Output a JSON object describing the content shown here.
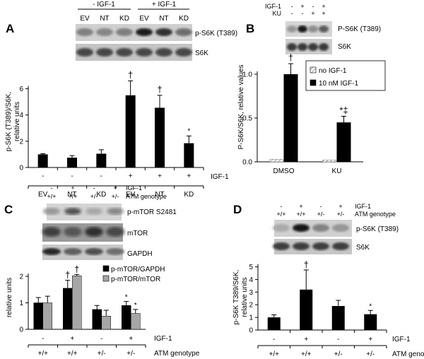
{
  "chart_data": [
    {
      "panel": "A",
      "type": "bar",
      "blot": {
        "group_headers": [
          "- IGF-1",
          "+ IGF-1"
        ],
        "lane_labels": [
          "EV",
          "NT",
          "KD",
          "EV",
          "NT",
          "KD"
        ],
        "rows": [
          "p-S6K (T389)",
          "S6K"
        ]
      },
      "categories": [
        "EV",
        "NT",
        "KD",
        "EV",
        "NT",
        "KD"
      ],
      "igf": [
        "-",
        "-",
        "-",
        "+",
        "+",
        "+"
      ],
      "values": [
        1.0,
        0.75,
        1.05,
        5.5,
        4.55,
        1.85
      ],
      "errors": [
        0.05,
        0.15,
        0.3,
        1.1,
        0.95,
        0.55
      ],
      "annotations": [
        "",
        "",
        "",
        "†",
        "†",
        "*"
      ],
      "ylabel_lines": [
        "p-S6K (T389)/S6K,",
        "relative units"
      ],
      "row_label": "IGF-1",
      "ylim": [
        0,
        7
      ],
      "yticks": [
        0,
        2,
        4,
        6
      ],
      "bar_color": "#000000"
    },
    {
      "panel": "B",
      "type": "bar",
      "blot": {
        "treatment_rows": [
          {
            "label": "IGF-1",
            "signs": [
              "-",
              "+",
              "-",
              "+"
            ]
          },
          {
            "label": "KU",
            "signs": [
              "-",
              "-",
              "+",
              "+"
            ]
          }
        ],
        "rows": [
          "P-S6K (T389)",
          "S6K"
        ]
      },
      "categories": [
        "DMSO",
        "KU"
      ],
      "series": [
        {
          "name": "no IGF-1",
          "values": [
            0.03,
            0.02
          ],
          "errors": [
            0.005,
            0.005
          ],
          "color": "#d9d9d9",
          "pattern": "hatched"
        },
        {
          "name": "10 nM IGF-1",
          "values": [
            1.0,
            0.45
          ],
          "errors": [
            0.12,
            0.07
          ],
          "color": "#000000"
        }
      ],
      "annotations": [
        "†",
        "*‡"
      ],
      "ylabel": "P-S6K/S6K, relative values",
      "ylim": [
        0,
        1.25
      ],
      "yticks": [
        0.0,
        0.5,
        1.0
      ],
      "legend": "top-right"
    },
    {
      "panel": "C",
      "type": "bar",
      "blot": {
        "treatment_rows": [
          {
            "label": "IGF-1",
            "signs": [
              "-",
              "+",
              "-",
              "+"
            ]
          },
          {
            "label": "ATM genotype",
            "signs": [
              "+/+",
              "+/+",
              "+/-",
              "+/-"
            ]
          }
        ],
        "rows": [
          "p-mTOR S2481",
          "mTOR",
          "GAPDH"
        ]
      },
      "igf": [
        "-",
        "+",
        "-",
        "+"
      ],
      "genotype": [
        "+/+",
        "+/+",
        "+/-",
        "+/-"
      ],
      "series": [
        {
          "name": "p-mTOR/GAPDH",
          "values": [
            1.0,
            1.55,
            0.75,
            0.9
          ],
          "errors": [
            0.2,
            0.3,
            0.15,
            0.15
          ],
          "color": "#000000"
        },
        {
          "name": "p-mTOR/mTOR",
          "values": [
            1.0,
            2.02,
            0.5,
            0.6
          ],
          "errors": [
            0.25,
            0.05,
            0.22,
            0.15
          ],
          "color": "#a6a6a6"
        }
      ],
      "annotations": [
        [
          "",
          "†",
          "",
          "*"
        ],
        [
          "",
          "†",
          "",
          "*"
        ]
      ],
      "ylabel": "relative units",
      "row_labels": [
        "IGF-1",
        "ATM genotype"
      ],
      "ylim": [
        0,
        2.4
      ],
      "yticks": [
        0,
        1,
        2
      ],
      "legend": "top-right"
    },
    {
      "panel": "D",
      "type": "bar",
      "blot": {
        "treatment_rows": [
          {
            "label": "IGF-1",
            "signs": [
              "-",
              "+",
              "-",
              "+"
            ]
          },
          {
            "label": "ATM genotype",
            "signs": [
              "+/+",
              "+/+",
              "+/-",
              "+/-"
            ]
          }
        ],
        "rows": [
          "p-S6K (T389)",
          "S6K"
        ]
      },
      "igf": [
        "-",
        "+",
        "-",
        "+"
      ],
      "genotype": [
        "+/+",
        "+/+",
        "+/-",
        "+/-"
      ],
      "values": [
        1.0,
        3.2,
        1.9,
        1.25
      ],
      "errors": [
        0.2,
        1.55,
        0.45,
        0.3
      ],
      "annotations": [
        "",
        "†",
        "",
        "*"
      ],
      "ylabel_lines": [
        "p-S6K T389/S6K,",
        "relative units"
      ],
      "row_labels": [
        "IGF-1",
        "ATM genotype"
      ],
      "ylim": [
        0,
        5.2
      ],
      "yticks": [
        0,
        1,
        2,
        3,
        4,
        5
      ],
      "bar_color": "#000000"
    }
  ]
}
